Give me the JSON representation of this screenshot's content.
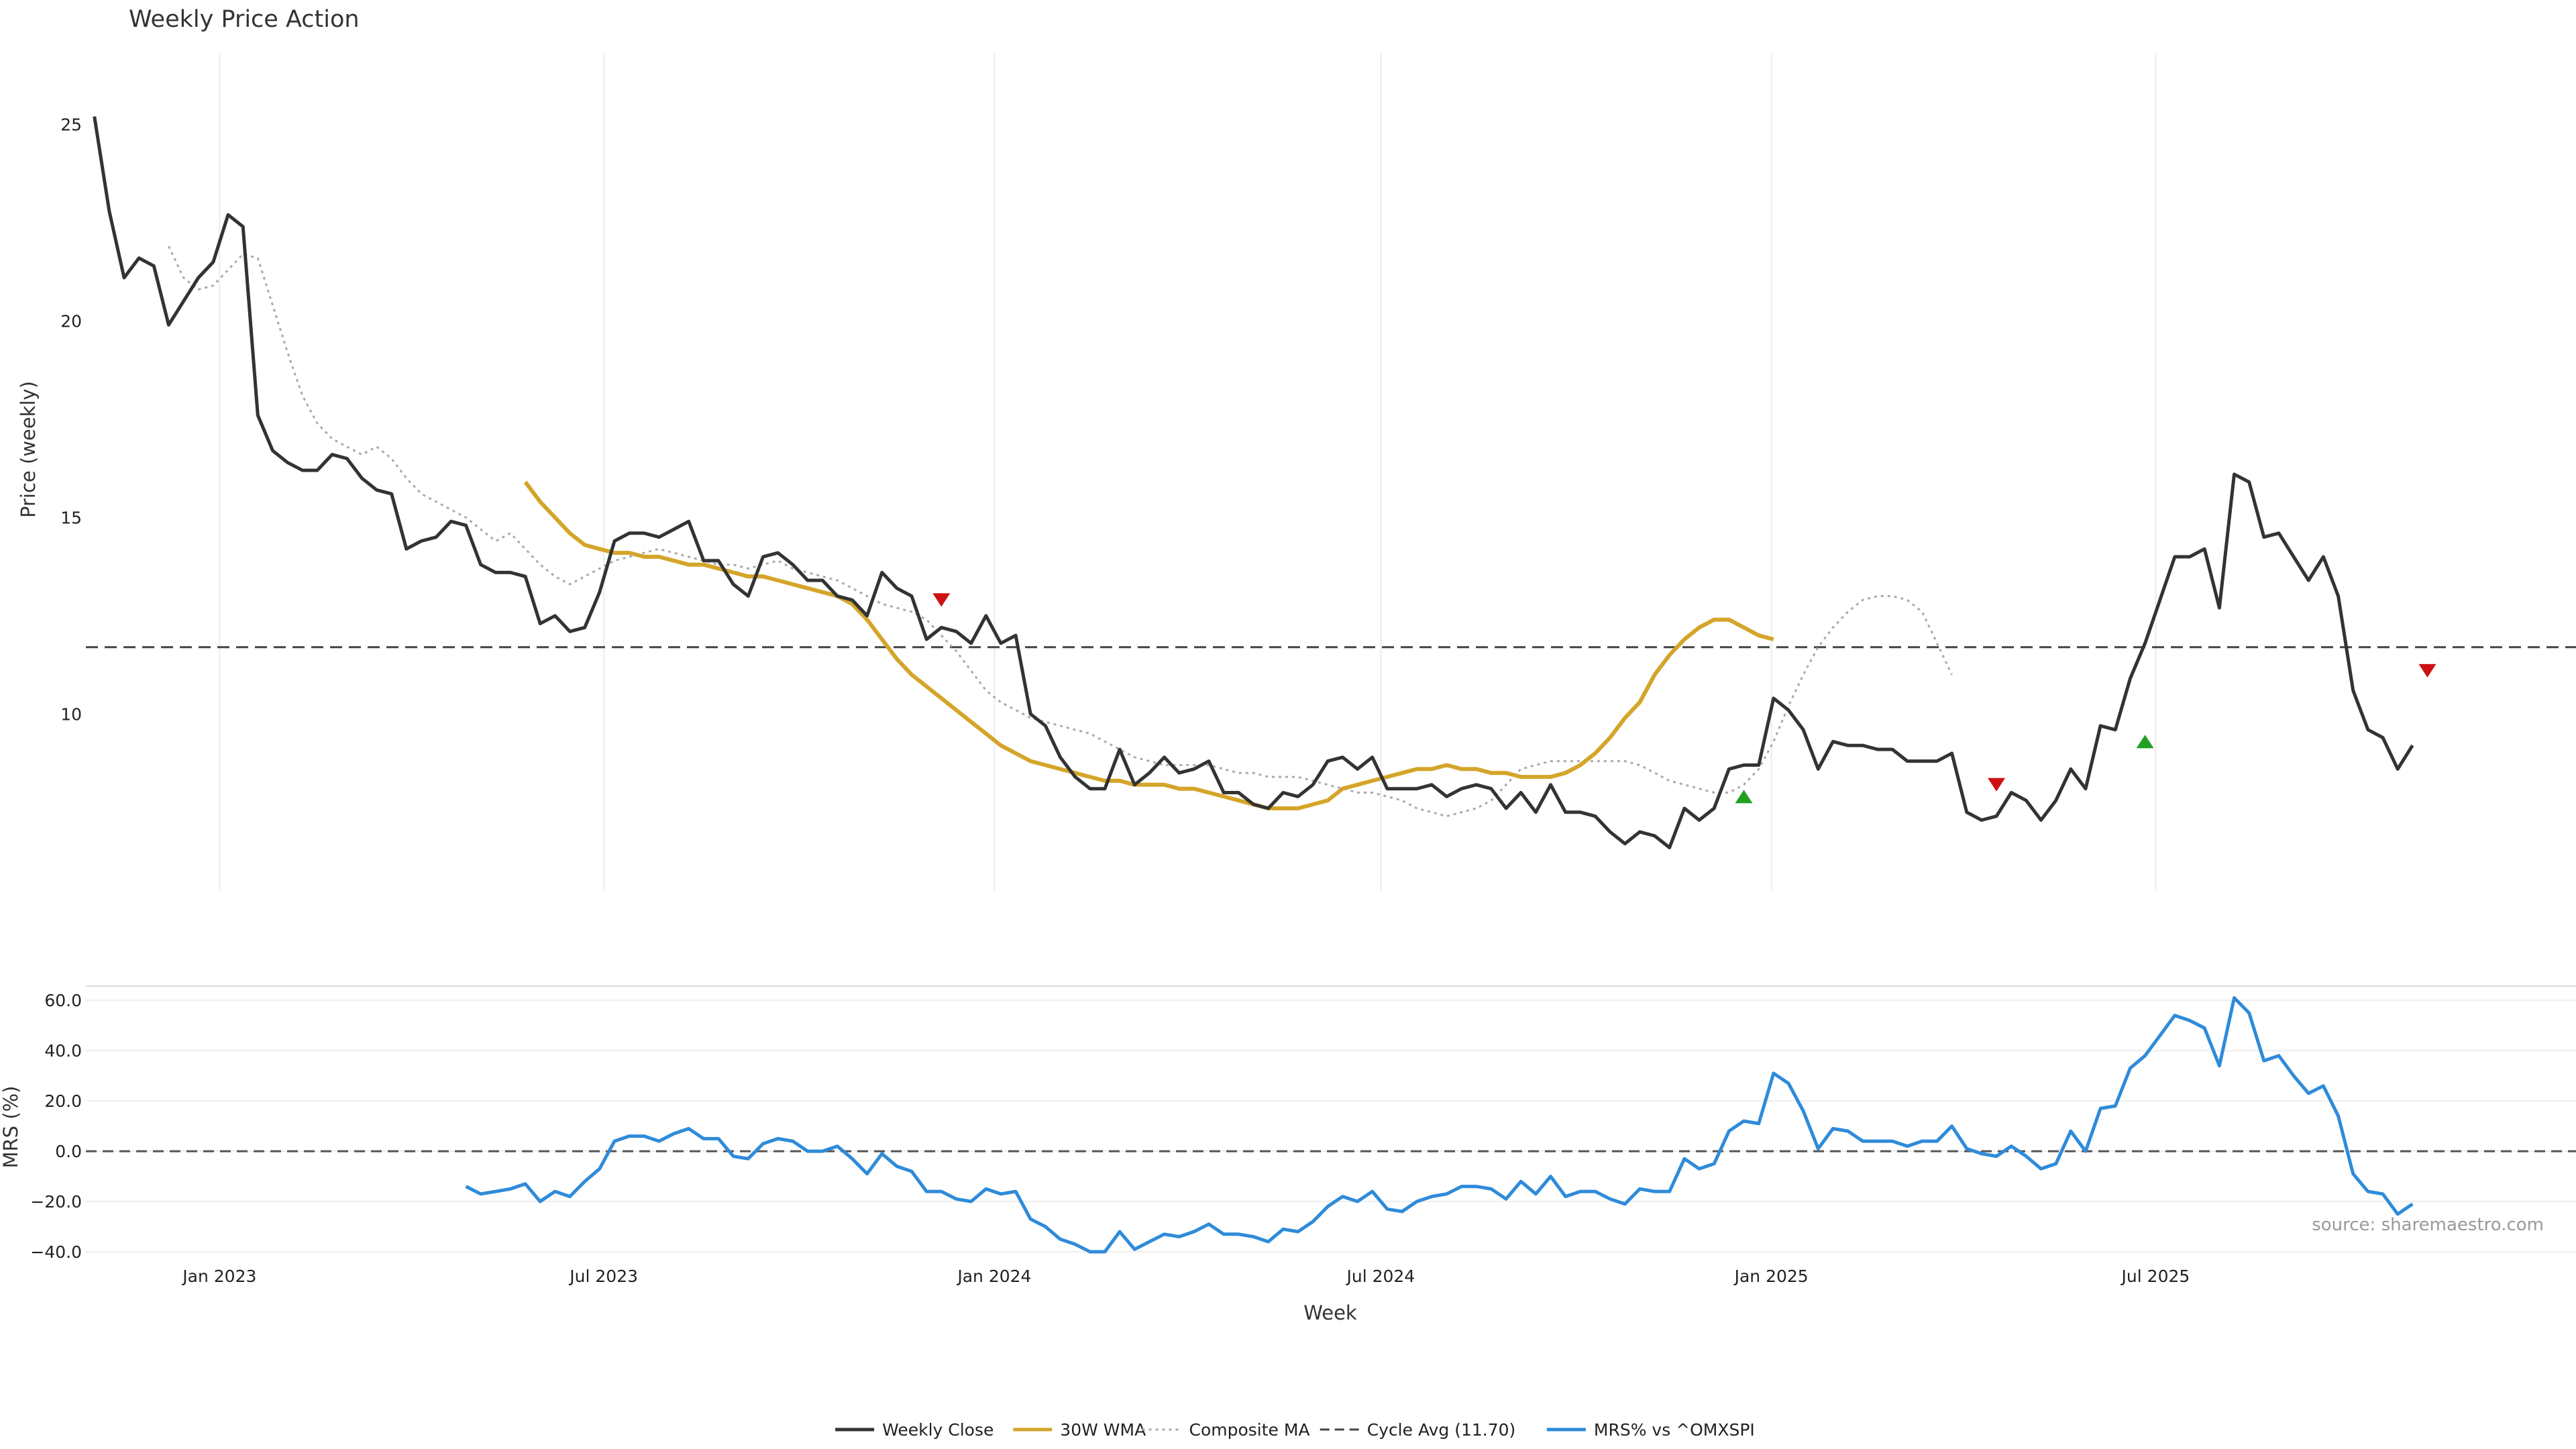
{
  "chart_data": {
    "type": "line",
    "title": "Weekly Price Action",
    "xlabel": "Week",
    "source_note": "source: sharemaestro.com",
    "x_ticks": [
      "Jan 2023",
      "Jul 2023",
      "Jan 2024",
      "Jul 2024",
      "Jan 2025",
      "Jul 2025"
    ],
    "x_tick_dates": [
      "2023-01-01",
      "2023-07-01",
      "2024-01-01",
      "2024-07-01",
      "2025-01-01",
      "2025-07-01"
    ],
    "x_range": [
      "2022-10-30",
      "2026-01-15"
    ],
    "legend_position": "bottom-center",
    "price_panel": {
      "ylabel": "Price (weekly)",
      "y_ticks": [
        "10",
        "15",
        "20",
        "25"
      ],
      "y_tick_values": [
        10,
        15,
        20,
        25
      ],
      "ylim": [
        5.5,
        26.8
      ],
      "grid": "vertical",
      "cycle_avg": 11.7,
      "weekly_close": {
        "name": "Weekly Close",
        "start_date": "2022-11-03",
        "color": "#333333",
        "values": [
          25.2,
          22.8,
          21.1,
          21.6,
          21.4,
          19.9,
          20.5,
          21.1,
          21.5,
          22.7,
          22.4,
          17.6,
          16.7,
          16.4,
          16.2,
          16.2,
          16.6,
          16.5,
          16.0,
          15.7,
          15.6,
          14.2,
          14.4,
          14.5,
          14.9,
          14.8,
          13.8,
          13.6,
          13.6,
          13.5,
          12.3,
          12.5,
          12.1,
          12.2,
          13.1,
          14.4,
          14.6,
          14.6,
          14.5,
          14.7,
          14.9,
          13.9,
          13.9,
          13.3,
          13.0,
          14.0,
          14.1,
          13.8,
          13.4,
          13.4,
          13.0,
          12.9,
          12.5,
          13.6,
          13.2,
          13.0,
          11.9,
          12.2,
          12.1,
          11.8,
          12.5,
          11.8,
          12.0,
          10.0,
          9.7,
          8.9,
          8.4,
          8.1,
          8.1,
          9.1,
          8.2,
          8.5,
          8.9,
          8.5,
          8.6,
          8.8,
          8.0,
          8.0,
          7.7,
          7.6,
          8.0,
          7.9,
          8.2,
          8.8,
          8.9,
          8.6,
          8.9,
          8.1,
          8.1,
          8.1,
          8.2,
          7.9,
          8.1,
          8.2,
          8.1,
          7.6,
          8.0,
          7.5,
          8.2,
          7.5,
          7.5,
          7.4,
          7.0,
          6.7,
          7.0,
          6.9,
          6.6,
          7.6,
          7.3,
          7.6,
          8.6,
          8.7,
          8.7,
          10.4,
          10.1,
          9.6,
          8.6,
          9.3,
          9.2,
          9.2,
          9.1,
          9.1,
          8.8,
          8.8,
          8.8,
          9.0,
          7.5,
          7.3,
          7.4,
          8.0,
          7.8,
          7.3,
          7.8,
          8.6,
          8.1,
          9.7,
          9.6,
          10.9,
          11.8,
          12.9,
          14.0,
          14.0,
          14.2,
          12.7,
          16.1,
          15.9,
          14.5,
          14.6,
          14.0,
          13.4,
          14.0,
          13.0,
          10.6,
          9.6,
          9.4,
          8.6,
          9.2
        ]
      },
      "wma_30w": {
        "name": "30W WMA",
        "start_date": "2023-05-25",
        "color": "#D4A52A",
        "values": [
          15.9,
          15.4,
          15.0,
          14.6,
          14.3,
          14.2,
          14.1,
          14.1,
          14.0,
          14.0,
          13.9,
          13.8,
          13.8,
          13.7,
          13.6,
          13.5,
          13.5,
          13.4,
          13.3,
          13.2,
          13.1,
          13.0,
          12.8,
          12.4,
          11.9,
          11.4,
          11.0,
          10.7,
          10.4,
          10.1,
          9.8,
          9.5,
          9.2,
          9.0,
          8.8,
          8.7,
          8.6,
          8.5,
          8.4,
          8.3,
          8.3,
          8.2,
          8.2,
          8.2,
          8.1,
          8.1,
          8.0,
          7.9,
          7.8,
          7.7,
          7.6,
          7.6,
          7.6,
          7.7,
          7.8,
          8.1,
          8.2,
          8.3,
          8.4,
          8.5,
          8.6,
          8.6,
          8.7,
          8.6,
          8.6,
          8.5,
          8.5,
          8.4,
          8.4,
          8.4,
          8.5,
          8.7,
          9.0,
          9.4,
          9.9,
          10.3,
          11.0,
          11.5,
          11.9,
          12.2,
          12.4,
          12.4,
          12.2,
          12.0,
          11.9
        ]
      },
      "composite_ma": {
        "name": "Composite MA",
        "start_date": "2022-12-08",
        "color": "#AAAAAA",
        "values": [
          21.9,
          21.1,
          20.8,
          20.9,
          21.3,
          21.7,
          21.6,
          20.4,
          19.2,
          18.1,
          17.4,
          17.0,
          16.8,
          16.6,
          16.8,
          16.5,
          16.0,
          15.6,
          15.4,
          15.2,
          15.0,
          14.7,
          14.4,
          14.6,
          14.2,
          13.8,
          13.5,
          13.3,
          13.5,
          13.7,
          13.9,
          14.0,
          14.1,
          14.2,
          14.1,
          14.0,
          13.9,
          13.8,
          13.8,
          13.7,
          13.8,
          13.9,
          13.7,
          13.6,
          13.5,
          13.4,
          13.2,
          13.0,
          12.8,
          12.7,
          12.6,
          12.4,
          12.0,
          11.6,
          11.1,
          10.6,
          10.3,
          10.1,
          9.9,
          9.8,
          9.7,
          9.6,
          9.5,
          9.3,
          9.1,
          8.9,
          8.8,
          8.7,
          8.7,
          8.7,
          8.7,
          8.6,
          8.5,
          8.5,
          8.4,
          8.4,
          8.4,
          8.3,
          8.2,
          8.1,
          8.0,
          8.0,
          7.9,
          7.8,
          7.6,
          7.5,
          7.4,
          7.5,
          7.6,
          7.8,
          8.2,
          8.6,
          8.7,
          8.8,
          8.8,
          8.8,
          8.8,
          8.8,
          8.8,
          8.7,
          8.5,
          8.3,
          8.2,
          8.1,
          8.0,
          8.0,
          8.2,
          8.6,
          9.3,
          10.2,
          11.0,
          11.7,
          12.2,
          12.6,
          12.9,
          13.0,
          13.0,
          12.9,
          12.6,
          11.8,
          11.0
        ]
      },
      "signals": [
        {
          "type": "down",
          "date": "2023-12-07",
          "value": 12.9,
          "color": "#CC1111"
        },
        {
          "type": "up",
          "date": "2024-12-19",
          "value": 7.9,
          "color": "#22A022"
        },
        {
          "type": "down",
          "date": "2025-04-17",
          "value": 8.2,
          "color": "#CC1111"
        },
        {
          "type": "up",
          "date": "2025-06-26",
          "value": 9.3,
          "color": "#22A022"
        },
        {
          "type": "down",
          "date": "2025-11-06",
          "value": 11.1,
          "color": "#CC1111"
        }
      ]
    },
    "mrs_panel": {
      "ylabel": "MRS (%)",
      "y_ticks": [
        "−40.0",
        "−20.0",
        "0.0",
        "20.0",
        "40.0",
        "60.0"
      ],
      "y_tick_values": [
        -40,
        -20,
        0,
        20,
        40,
        60
      ],
      "ylim": [
        -40,
        63
      ],
      "grid": "horizontal",
      "zero_line": 0,
      "series": {
        "name": "MRS% vs ^OMXSPI",
        "start_date": "2023-04-27",
        "color": "#2E8BD9",
        "values": [
          -14,
          -17,
          -16,
          -15,
          -13,
          -20,
          -16,
          -18,
          -12,
          -7,
          4,
          6,
          6,
          4,
          7,
          9,
          5,
          5,
          -2,
          -3,
          3,
          5,
          4,
          0,
          0,
          2,
          -3,
          -9,
          -1,
          -6,
          -8,
          -16,
          -16,
          -19,
          -20,
          -15,
          -17,
          -16,
          -27,
          -30,
          -35,
          -37,
          -40,
          -40,
          -32,
          -39,
          -36,
          -33,
          -34,
          -32,
          -29,
          -33,
          -33,
          -34,
          -36,
          -31,
          -32,
          -28,
          -22,
          -18,
          -20,
          -16,
          -23,
          -24,
          -20,
          -18,
          -17,
          -14,
          -14,
          -15,
          -19,
          -12,
          -17,
          -10,
          -18,
          -16,
          -16,
          -19,
          -21,
          -15,
          -16,
          -16,
          -3,
          -7,
          -5,
          8,
          12,
          11,
          31,
          27,
          16,
          1,
          9,
          8,
          4,
          4,
          4,
          2,
          4,
          4,
          10,
          1,
          -1,
          -2,
          2,
          -2,
          -7,
          -5,
          8,
          0,
          17,
          18,
          33,
          38,
          46,
          54,
          52,
          49,
          34,
          61,
          55,
          36,
          38,
          30,
          23,
          26,
          14,
          -9,
          -16,
          -17,
          -25,
          -21
        ]
      }
    },
    "legend": [
      {
        "label": "Weekly Close",
        "color": "#333333",
        "style": "solid"
      },
      {
        "label": "30W WMA",
        "color": "#D4A52A",
        "style": "solid"
      },
      {
        "label": "Composite MA",
        "color": "#AAAAAA",
        "style": "dotted"
      },
      {
        "label": "Cycle Avg (11.70)",
        "color": "#444444",
        "style": "dashed"
      },
      {
        "label": "MRS% vs ^OMXSPI",
        "color": "#2E8BD9",
        "style": "solid"
      }
    ]
  }
}
